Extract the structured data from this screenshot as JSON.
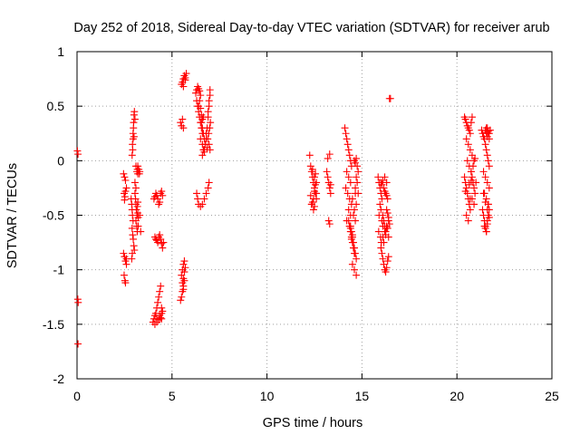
{
  "chart_data": {
    "type": "scatter",
    "title": "Day 252 of 2018, Sidereal Day-to-day VTEC variation (SDTVAR) for receiver arub",
    "xlabel": "GPS time / hours",
    "ylabel": "SDTVAR / TECUs",
    "xlim": [
      0,
      25
    ],
    "ylim": [
      -2,
      1
    ],
    "xticks": [
      0,
      5,
      10,
      15,
      20,
      25
    ],
    "xtick_labels": [
      "0",
      "5",
      "10",
      "15",
      "20",
      "25"
    ],
    "yticks": [
      -2,
      -1.5,
      -1,
      -0.5,
      0,
      0.5,
      1
    ],
    "ytick_labels": [
      "-2",
      "-1.5",
      "-1",
      "-0.5",
      "0",
      "0.5",
      "1"
    ],
    "grid": true,
    "marker": "+",
    "series": [
      {
        "name": "SDTVAR",
        "color": "#ff0000",
        "x": [
          0.02,
          0.05,
          0.04,
          0.06,
          0.05,
          2.45,
          2.5,
          2.55,
          2.48,
          2.52,
          2.5,
          2.55,
          2.6,
          2.45,
          2.5,
          2.55,
          2.6,
          2.48,
          2.52,
          2.55,
          2.6,
          2.9,
          2.92,
          2.95,
          2.98,
          3.0,
          3.02,
          3.05,
          2.95,
          2.93,
          2.97,
          3.0,
          2.85,
          2.88,
          2.9,
          2.92,
          2.95,
          2.9,
          2.93,
          2.96,
          2.99,
          3.02,
          2.88,
          2.91,
          3.05,
          3.08,
          3.1,
          3.12,
          3.15,
          3.18,
          3.2,
          3.1,
          3.14,
          3.17,
          3.2,
          3.22,
          3.1,
          3.15,
          3.18,
          3.2,
          3.05,
          3.1,
          3.2,
          3.25,
          3.3,
          3.28,
          3.22,
          3.3,
          3.35,
          4.0,
          4.05,
          4.1,
          4.15,
          4.2,
          4.25,
          4.3,
          4.35,
          4.4,
          4.45,
          4.1,
          4.15,
          4.2,
          4.25,
          4.3,
          4.35,
          4.4,
          4.45,
          4.5,
          4.55,
          4.05,
          4.1,
          4.15,
          4.2,
          4.25,
          4.3,
          4.35,
          4.4,
          4.45,
          4.5,
          4.1,
          4.2,
          4.3,
          4.4,
          4.45,
          4.5,
          4.2,
          4.35,
          4.45,
          5.45,
          5.5,
          5.55,
          5.6,
          5.65,
          5.5,
          5.55,
          5.6,
          5.65,
          5.55,
          5.6,
          5.65,
          5.7,
          5.6,
          5.45,
          5.5,
          5.55,
          5.6,
          5.5,
          5.55,
          5.6,
          5.65,
          5.7,
          5.75,
          5.6,
          5.7,
          6.25,
          6.3,
          6.35,
          6.4,
          6.45,
          6.5,
          6.3,
          6.4,
          6.35,
          6.4,
          6.45,
          6.5,
          6.55,
          6.6,
          6.45,
          6.5,
          6.55,
          6.6,
          6.5,
          6.6,
          6.65,
          6.7,
          6.55,
          6.6,
          6.65,
          6.7,
          6.75,
          6.6,
          6.7,
          6.75,
          6.8,
          6.65,
          6.8,
          6.85,
          6.85,
          6.9,
          6.95,
          7.0,
          6.9,
          6.95,
          7.0,
          6.88,
          6.93,
          6.98,
          7.02,
          6.95,
          7.0,
          6.3,
          6.35,
          6.4,
          6.5,
          6.6,
          6.7,
          6.8,
          6.9,
          6.95,
          12.25,
          12.3,
          12.35,
          12.4,
          12.45,
          12.5,
          12.55,
          12.6,
          12.35,
          12.45,
          12.55,
          12.6,
          12.4,
          12.5,
          12.3,
          12.4,
          12.5,
          12.55,
          12.6,
          12.45,
          12.35,
          12.5,
          13.15,
          13.2,
          13.25,
          13.3,
          13.35,
          13.25,
          13.3,
          13.2,
          13.3,
          13.35,
          14.1,
          14.15,
          14.2,
          14.25,
          14.3,
          14.35,
          14.4,
          14.45,
          14.2,
          14.3,
          14.4,
          14.15,
          14.25,
          14.35,
          14.45,
          14.3,
          14.4,
          14.2,
          14.35,
          14.4,
          14.45,
          14.5,
          14.55,
          14.6,
          14.65,
          14.7,
          14.5,
          14.6,
          14.7,
          14.55,
          14.65,
          14.6,
          14.7,
          14.5,
          14.65,
          14.3,
          14.35,
          14.4,
          14.45,
          14.5,
          14.55,
          14.6,
          14.4,
          14.5,
          14.45,
          14.6,
          14.65,
          14.7,
          14.75,
          14.8,
          14.7,
          14.75,
          14.65,
          14.8,
          15.85,
          15.9,
          15.95,
          16.0,
          16.05,
          15.95,
          16.0,
          15.9,
          16.05,
          16.1,
          15.88,
          15.98,
          16.02,
          16.0,
          16.05,
          16.1,
          16.15,
          16.2,
          16.25,
          16.3,
          16.35,
          16.4,
          16.1,
          16.2,
          16.3,
          16.4,
          16.15,
          16.25,
          16.35,
          16.0,
          16.05,
          16.1,
          16.15,
          16.2,
          16.25,
          16.3,
          16.35,
          16.2,
          16.3,
          16.1,
          16.15,
          16.2,
          16.25,
          16.3,
          16.35,
          16.4,
          16.45,
          16.3,
          16.4,
          16.45,
          16.5,
          20.4,
          20.45,
          20.5,
          20.55,
          20.6,
          20.65,
          20.7,
          20.75,
          20.8,
          20.5,
          20.6,
          20.7,
          20.8,
          20.55,
          20.65,
          20.75,
          20.4,
          20.45,
          20.5,
          20.55,
          20.6,
          20.65,
          20.7,
          20.5,
          20.6,
          20.7,
          20.45,
          20.65,
          20.75,
          20.75,
          20.8,
          20.85,
          20.9,
          20.95,
          20.8,
          20.9,
          20.85,
          20.9,
          20.95,
          21.0,
          21.3,
          21.35,
          21.4,
          21.45,
          21.5,
          21.55,
          21.6,
          21.65,
          21.7,
          21.4,
          21.5,
          21.6,
          21.7,
          21.45,
          21.55,
          21.65,
          21.35,
          21.4,
          21.45,
          21.5,
          21.55,
          21.6,
          21.65,
          21.7,
          21.5,
          21.6,
          21.5,
          21.55,
          21.6,
          21.65,
          21.7,
          21.75,
          21.6,
          21.7,
          21.55,
          21.65,
          21.4,
          21.5,
          21.6,
          21.7,
          21.45,
          21.55,
          21.65
        ],
        "y": [
          0.09,
          0.06,
          -1.27,
          -1.3,
          -1.68,
          -0.12,
          -0.15,
          -0.18,
          -0.3,
          -0.33,
          -0.36,
          -0.28,
          -0.25,
          -0.85,
          -0.88,
          -0.92,
          -0.95,
          -1.05,
          -1.1,
          -1.12,
          -0.9,
          0.05,
          0.15,
          0.25,
          0.35,
          0.42,
          0.45,
          0.38,
          0.2,
          0.1,
          0.3,
          0.22,
          -0.35,
          -0.4,
          -0.45,
          -0.5,
          -0.55,
          -0.62,
          -0.68,
          -0.72,
          -0.78,
          -0.82,
          -0.9,
          -0.85,
          -0.3,
          -0.35,
          -0.4,
          -0.45,
          -0.5,
          -0.42,
          -0.38,
          -0.55,
          -0.6,
          -0.65,
          -0.48,
          -0.52,
          -0.05,
          -0.1,
          -0.08,
          -0.12,
          -0.2,
          -0.25,
          -0.05,
          -0.08,
          -0.1,
          -0.12,
          -0.6,
          -0.5,
          -0.65,
          -1.48,
          -1.45,
          -1.42,
          -1.4,
          -1.35,
          -1.3,
          -1.25,
          -1.2,
          -1.15,
          -1.45,
          -0.7,
          -0.72,
          -0.73,
          -0.75,
          -0.7,
          -0.68,
          -0.72,
          -0.76,
          -0.8,
          -0.75,
          -0.35,
          -0.33,
          -0.3,
          -0.32,
          -0.35,
          -0.4,
          -0.38,
          -0.3,
          -0.28,
          -0.32,
          -1.5,
          -1.48,
          -1.46,
          -1.44,
          -1.4,
          -1.38,
          -1.45,
          -1.42,
          -1.35,
          -1.28,
          -1.25,
          -1.2,
          -1.15,
          -1.1,
          -1.05,
          -1.0,
          -0.95,
          -0.92,
          -1.12,
          -1.08,
          -1.02,
          -0.98,
          -1.18,
          0.35,
          0.32,
          0.38,
          0.3,
          0.7,
          0.72,
          0.75,
          0.78,
          0.76,
          0.8,
          0.68,
          0.74,
          0.62,
          0.65,
          0.68,
          0.66,
          0.64,
          0.6,
          0.55,
          0.5,
          0.5,
          0.45,
          0.4,
          0.35,
          0.3,
          0.25,
          0.55,
          0.48,
          0.42,
          0.38,
          0.2,
          0.15,
          0.1,
          0.08,
          0.35,
          0.3,
          0.25,
          0.2,
          0.15,
          0.05,
          0.1,
          0.15,
          0.2,
          0.4,
          0.25,
          0.12,
          0.3,
          0.4,
          0.5,
          0.6,
          0.45,
          0.55,
          0.65,
          0.2,
          0.25,
          0.3,
          0.35,
          0.15,
          0.1,
          -0.3,
          -0.35,
          -0.4,
          -0.42,
          -0.4,
          -0.35,
          -0.3,
          -0.25,
          -0.2,
          0.05,
          -0.05,
          -0.1,
          -0.15,
          -0.2,
          -0.25,
          -0.3,
          -0.35,
          -0.4,
          -0.45,
          -0.12,
          -0.2,
          -0.38,
          -0.42,
          -0.32,
          -0.08,
          -0.15,
          -0.22,
          -0.3,
          -0.35,
          -0.4,
          -0.28,
          -0.1,
          -0.15,
          -0.2,
          -0.25,
          -0.22,
          -0.55,
          -0.58,
          0.02,
          0.06,
          -0.3,
          0.3,
          0.25,
          0.2,
          0.15,
          0.1,
          0.05,
          0.0,
          -0.05,
          -0.1,
          -0.15,
          -0.2,
          -0.25,
          -0.3,
          -0.35,
          -0.4,
          -0.45,
          -0.5,
          -0.55,
          -0.6,
          -0.6,
          -0.65,
          -0.7,
          -0.75,
          -0.8,
          -0.85,
          -0.9,
          -0.95,
          -1.0,
          -1.05,
          -0.5,
          -0.55,
          -0.45,
          -0.4,
          -0.35,
          -0.3,
          -0.55,
          -0.6,
          -0.65,
          -0.7,
          -0.75,
          -0.8,
          -0.85,
          -0.62,
          -0.68,
          -0.72,
          0.0,
          -0.02,
          0.02,
          -0.05,
          -0.1,
          -0.15,
          -0.2,
          -0.25,
          -0.3,
          -0.15,
          -0.2,
          -0.25,
          -0.3,
          -0.35,
          -0.4,
          -0.45,
          -0.5,
          -0.55,
          -0.6,
          -0.65,
          -0.7,
          -0.75,
          -0.8,
          -0.85,
          -0.9,
          -0.95,
          -1.0,
          -1.02,
          -0.98,
          -0.92,
          -0.88,
          -0.7,
          -0.65,
          -0.6,
          -0.55,
          -0.75,
          -0.68,
          -0.62,
          -0.2,
          -0.22,
          -0.18,
          -0.25,
          -0.28,
          -0.3,
          -0.32,
          -0.35,
          -0.15,
          -0.2,
          -0.5,
          -0.55,
          -0.6,
          -0.65,
          -0.45,
          -0.48,
          -0.52,
          -0.58,
          -0.62,
          -0.7,
          0.57,
          0.57,
          0.4,
          0.38,
          0.35,
          0.32,
          0.3,
          0.28,
          0.25,
          0.35,
          0.4,
          0.2,
          0.15,
          0.1,
          0.05,
          0.0,
          -0.05,
          -0.1,
          -0.15,
          -0.2,
          -0.25,
          -0.3,
          -0.35,
          -0.4,
          -0.45,
          -0.5,
          -0.55,
          -0.35,
          -0.28,
          -0.22,
          -0.18,
          -0.1,
          -0.15,
          -0.2,
          -0.25,
          -0.3,
          -0.35,
          -0.4,
          -0.05,
          0.0,
          0.02,
          -0.2,
          0.28,
          0.25,
          0.22,
          0.2,
          0.15,
          0.1,
          0.05,
          0.0,
          -0.05,
          -0.1,
          -0.15,
          -0.2,
          -0.25,
          -0.3,
          -0.35,
          -0.4,
          -0.45,
          -0.5,
          -0.55,
          -0.6,
          -0.65,
          -0.55,
          -0.5,
          -0.45,
          -0.62,
          -0.58,
          0.28,
          0.26,
          0.3,
          0.27,
          0.25,
          0.28,
          0.22,
          0.2,
          0.3,
          0.25,
          -0.3,
          -0.38,
          -0.45,
          -0.52,
          -0.6,
          -0.65,
          -0.4
        ]
      }
    ]
  }
}
